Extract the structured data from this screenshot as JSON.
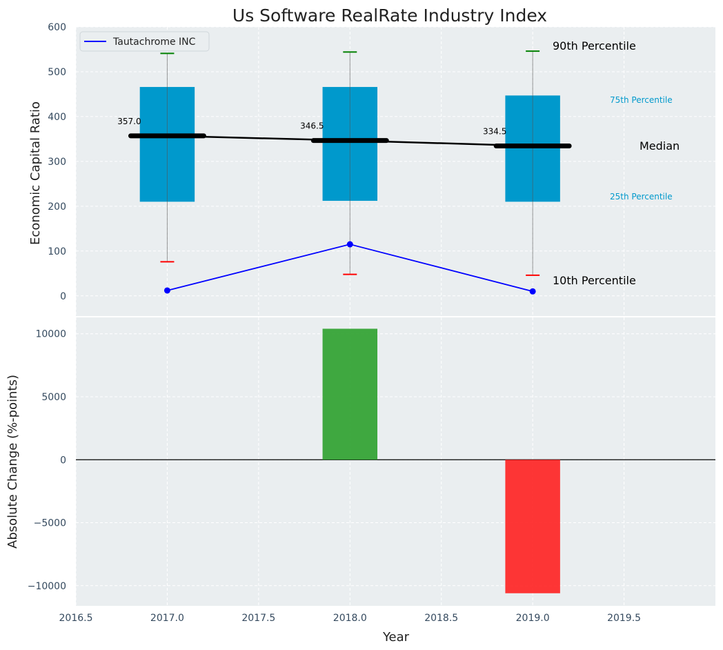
{
  "chart_data": [
    {
      "type": "box",
      "title": "Us Software RealRate Industry Index",
      "ylabel": "Economic Capital Ratio",
      "xlim": [
        2016.5,
        2020.0
      ],
      "ylim": [
        -45,
        600
      ],
      "yticks": [
        0,
        100,
        200,
        300,
        400,
        500,
        600
      ],
      "grid": true,
      "legend": {
        "position": "top-left",
        "entries": [
          "Tautachrome INC"
        ]
      },
      "years": [
        2017,
        2018,
        2019
      ],
      "p10": [
        76,
        48,
        46
      ],
      "p25": [
        210,
        212,
        210
      ],
      "median": [
        357.0,
        346.5,
        334.5
      ],
      "median_labels": [
        "357.0",
        "346.5",
        "334.5"
      ],
      "p75": [
        466,
        466,
        447
      ],
      "p90": [
        541,
        544,
        546
      ],
      "series": [
        {
          "name": "Tautachrome INC",
          "x": [
            2017,
            2018,
            2019
          ],
          "values": [
            12,
            115,
            10
          ]
        }
      ],
      "annotations": {
        "p90": "90th Percentile",
        "p75": "75th Percentile",
        "median": "Median",
        "p25": "25th Percentile",
        "p10": "10th Percentile"
      },
      "colors": {
        "box": "#0099cc",
        "median": "#000000",
        "company": "#0000ff",
        "p90_cap": "#008000",
        "p10_cap": "#ff0000",
        "background": "#eaeef0"
      }
    },
    {
      "type": "bar",
      "ylabel": "Absolute Change (%-points)",
      "xlabel": "Year",
      "xlim": [
        2016.5,
        2020.0
      ],
      "ylim": [
        -11600,
        11300
      ],
      "yticks": [
        -10000,
        -5000,
        0,
        5000,
        10000
      ],
      "ytick_labels": [
        "−10000",
        "−5000",
        "0",
        "5000",
        "10000"
      ],
      "xticks": [
        2016.5,
        2017.0,
        2017.5,
        2018.0,
        2018.5,
        2019.0,
        2019.5
      ],
      "xtick_labels": [
        "2016.5",
        "2017.0",
        "2017.5",
        "2018.0",
        "2018.5",
        "2019.0",
        "2019.5"
      ],
      "grid": true,
      "x": [
        2018,
        2019
      ],
      "values": [
        10400,
        -10600
      ],
      "colors": {
        "positive": "#2ca02c",
        "negative": "#ff2020",
        "background": "#eaeef0"
      }
    }
  ]
}
